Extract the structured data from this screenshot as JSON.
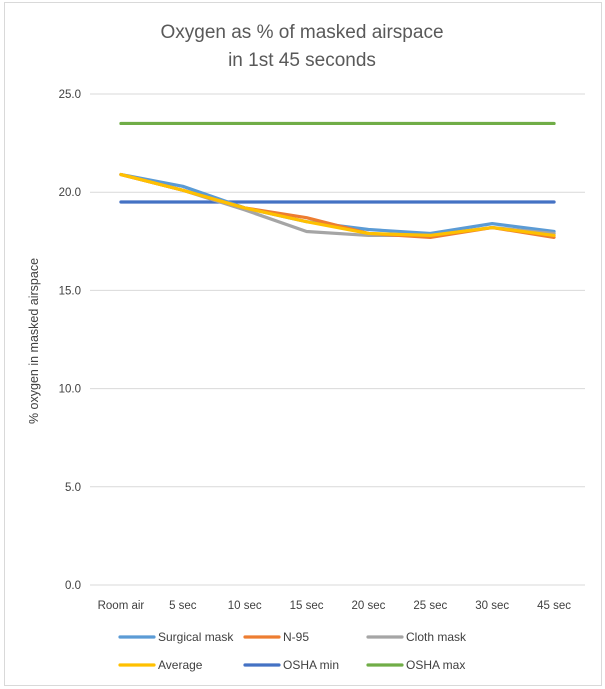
{
  "chart_data": {
    "type": "line",
    "title_lines": [
      "Oxygen as % of masked airspace",
      "in 1st 45 seconds"
    ],
    "xlabel": "",
    "ylabel": "% oxygen in masked airspace",
    "categories": [
      "Room air",
      "5 sec",
      "10 sec",
      "15 sec",
      "20 sec",
      "25 sec",
      "30 sec",
      "45 sec"
    ],
    "ylim": [
      0,
      25
    ],
    "yticks": [
      "0.0",
      "5.0",
      "10.0",
      "15.0",
      "20.0",
      "25.0"
    ],
    "ytick_values": [
      0,
      5,
      10,
      15,
      20,
      25
    ],
    "grid": "horizontal",
    "legend_position": "bottom",
    "series": [
      {
        "name": "Surgical mask",
        "color": "#5b9bd5",
        "values": [
          20.9,
          20.3,
          19.2,
          18.5,
          18.1,
          17.9,
          18.4,
          18.0
        ]
      },
      {
        "name": "N-95",
        "color": "#ed7d31",
        "values": [
          20.9,
          20.1,
          19.2,
          18.7,
          17.9,
          17.7,
          18.2,
          17.7
        ]
      },
      {
        "name": "Cloth mask",
        "color": "#a5a5a5",
        "values": [
          20.9,
          20.1,
          19.1,
          18.0,
          17.8,
          17.8,
          18.2,
          17.9
        ]
      },
      {
        "name": "Average",
        "color": "#ffc000",
        "values": [
          20.9,
          20.1,
          19.2,
          18.5,
          17.9,
          17.8,
          18.2,
          17.8
        ]
      },
      {
        "name": "OSHA min",
        "color": "#4472c4",
        "values": [
          19.5,
          19.5,
          19.5,
          19.5,
          19.5,
          19.5,
          19.5,
          19.5
        ]
      },
      {
        "name": "OSHA max",
        "color": "#70ad47",
        "values": [
          23.5,
          23.5,
          23.5,
          23.5,
          23.5,
          23.5,
          23.5,
          23.5
        ]
      }
    ]
  }
}
